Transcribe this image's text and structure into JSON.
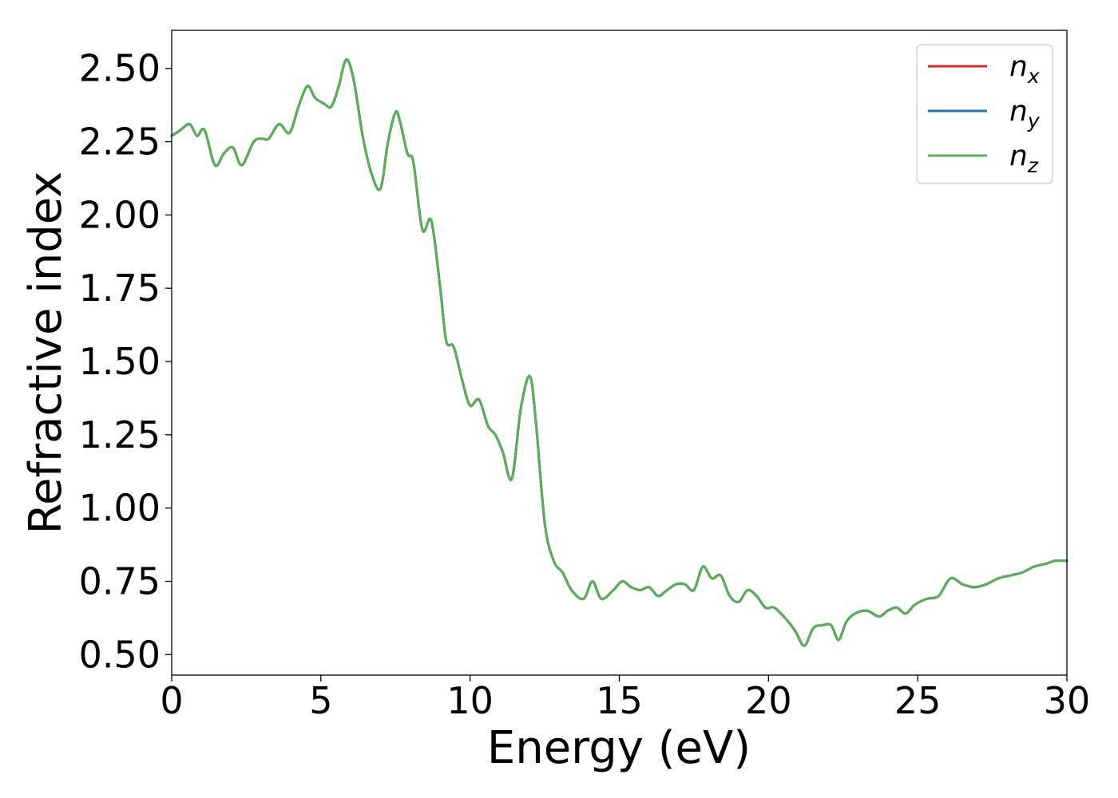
{
  "chart_data": {
    "type": "line",
    "xlabel": "Energy (eV)",
    "ylabel": "Refractive index",
    "xlim": [
      0,
      30
    ],
    "ylim": [
      0.43,
      2.63
    ],
    "xticks": [
      "0",
      "5",
      "10",
      "15",
      "20",
      "25",
      "30"
    ],
    "yticks": [
      "0.50",
      "0.75",
      "1.00",
      "1.25",
      "1.50",
      "1.75",
      "2.00",
      "2.25",
      "2.50"
    ],
    "grid": false,
    "legend_position": "top-right",
    "series": [
      {
        "name": "n",
        "subscript": "x",
        "color": "#d62728"
      },
      {
        "name": "n",
        "subscript": "y",
        "color": "#1f77b4"
      },
      {
        "name": "n",
        "subscript": "z",
        "color": "#5aae5a"
      }
    ],
    "x": [
      0,
      0.3,
      0.6,
      0.85,
      1.1,
      1.45,
      1.75,
      2.05,
      2.35,
      2.75,
      3.05,
      3.25,
      3.6,
      3.95,
      4.25,
      4.55,
      4.8,
      5.1,
      5.35,
      5.6,
      5.85,
      6.1,
      6.4,
      6.7,
      7.0,
      7.25,
      7.5,
      7.65,
      7.9,
      8.1,
      8.4,
      8.7,
      9.0,
      9.2,
      9.45,
      9.75,
      10.0,
      10.3,
      10.6,
      10.85,
      11.1,
      11.4,
      11.7,
      12.0,
      12.2,
      12.5,
      12.8,
      13.1,
      13.4,
      13.8,
      14.1,
      14.4,
      14.8,
      15.1,
      15.4,
      15.7,
      16.0,
      16.3,
      16.6,
      16.9,
      17.2,
      17.5,
      17.8,
      18.1,
      18.4,
      18.7,
      19.0,
      19.3,
      19.6,
      19.9,
      20.2,
      20.6,
      20.9,
      21.2,
      21.5,
      21.8,
      22.1,
      22.35,
      22.6,
      22.9,
      23.3,
      23.7,
      24.0,
      24.3,
      24.6,
      24.9,
      25.3,
      25.7,
      26.1,
      26.5,
      26.9,
      27.3,
      27.7,
      28.1,
      28.5,
      28.9,
      29.3,
      29.6,
      30.0
    ],
    "y": [
      2.27,
      2.29,
      2.31,
      2.27,
      2.29,
      2.17,
      2.21,
      2.23,
      2.17,
      2.25,
      2.26,
      2.26,
      2.31,
      2.28,
      2.37,
      2.44,
      2.4,
      2.38,
      2.37,
      2.44,
      2.53,
      2.46,
      2.27,
      2.14,
      2.09,
      2.25,
      2.35,
      2.32,
      2.21,
      2.18,
      1.95,
      1.98,
      1.75,
      1.57,
      1.55,
      1.43,
      1.35,
      1.37,
      1.28,
      1.25,
      1.19,
      1.1,
      1.34,
      1.45,
      1.3,
      0.95,
      0.82,
      0.78,
      0.72,
      0.69,
      0.75,
      0.69,
      0.72,
      0.75,
      0.73,
      0.72,
      0.73,
      0.7,
      0.72,
      0.74,
      0.74,
      0.72,
      0.8,
      0.76,
      0.77,
      0.7,
      0.68,
      0.72,
      0.7,
      0.66,
      0.66,
      0.62,
      0.58,
      0.53,
      0.59,
      0.6,
      0.6,
      0.55,
      0.61,
      0.64,
      0.65,
      0.63,
      0.65,
      0.66,
      0.64,
      0.67,
      0.69,
      0.7,
      0.76,
      0.74,
      0.73,
      0.74,
      0.76,
      0.77,
      0.78,
      0.8,
      0.81,
      0.82,
      0.82
    ]
  }
}
